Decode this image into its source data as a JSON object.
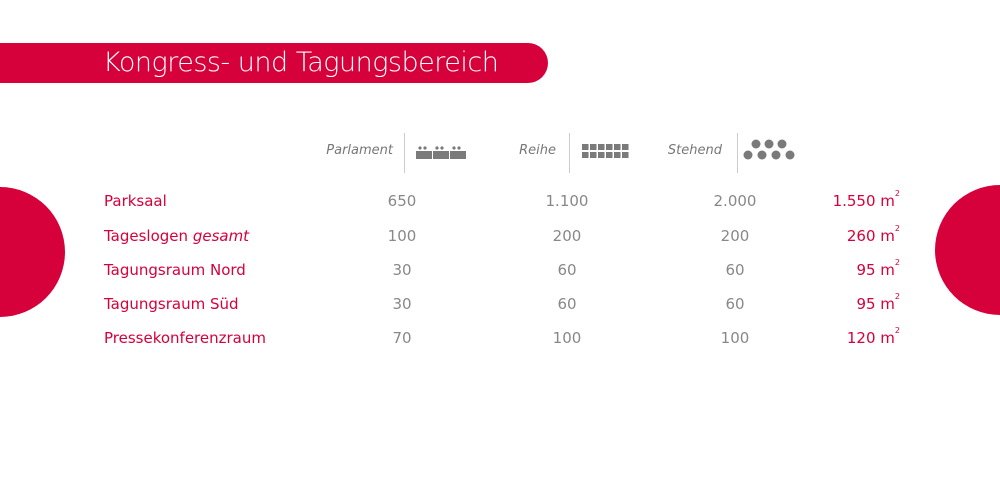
{
  "title": "Kongress- und Tagungsbereich",
  "colors": {
    "accent": "#d6003a",
    "text_gray": "#888888",
    "icon_gray": "#7a7a7a"
  },
  "columns": [
    {
      "label": "Parlament",
      "icon": "parliament-seating-icon"
    },
    {
      "label": "Reihe",
      "icon": "row-seating-icon"
    },
    {
      "label": "Stehend",
      "icon": "standing-icon"
    }
  ],
  "rows": [
    {
      "name": "Parksaal",
      "name_suffix": "",
      "parlament": "650",
      "reihe": "1.100",
      "stehend": "2.000",
      "area": "1.550 m",
      "unit_sup": "2"
    },
    {
      "name": "Tageslogen ",
      "name_suffix": "gesamt",
      "parlament": "100",
      "reihe": "200",
      "stehend": "200",
      "area": "260 m",
      "unit_sup": "2"
    },
    {
      "name": "Tagungsraum Nord",
      "name_suffix": "",
      "parlament": "30",
      "reihe": "60",
      "stehend": "60",
      "area": "95 m",
      "unit_sup": "2"
    },
    {
      "name": "Tagungsraum Süd",
      "name_suffix": "",
      "parlament": "30",
      "reihe": "60",
      "stehend": "60",
      "area": "95 m",
      "unit_sup": "2"
    },
    {
      "name": "Pressekonferenzraum",
      "name_suffix": "",
      "parlament": "70",
      "reihe": "100",
      "stehend": "100",
      "area": "120 m",
      "unit_sup": "2"
    }
  ]
}
